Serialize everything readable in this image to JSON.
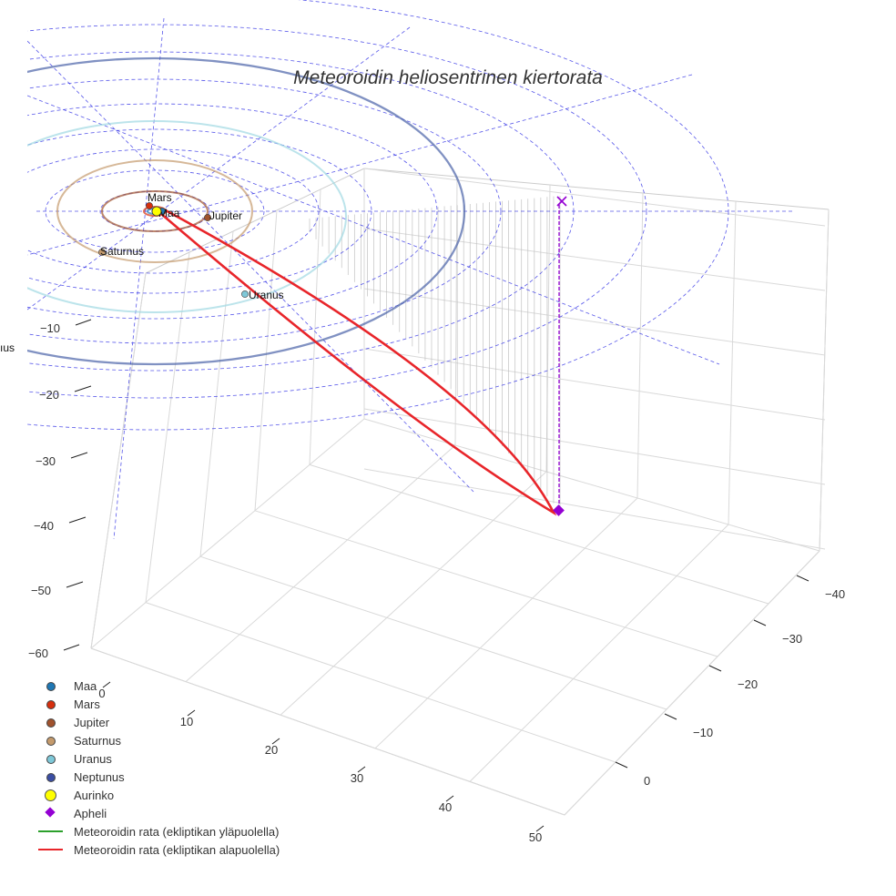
{
  "chart_data": {
    "type": "line",
    "title": "Meteoroidin heliosentrinen kiertorata",
    "xlabel": "",
    "ylabel": "",
    "zlabel": "",
    "x_ticks": [
      "0",
      "10",
      "20",
      "30",
      "40",
      "50"
    ],
    "y_ticks": [
      "−40",
      "−30",
      "−20",
      "−10",
      "0"
    ],
    "z_ticks": [
      "−10",
      "−20",
      "−30",
      "−40",
      "−50",
      "−60"
    ],
    "planets": [
      {
        "name": "Maa",
        "color": "#1f77b4",
        "orbit_color": "#1f77b4",
        "orbit_radius_au": 1.0
      },
      {
        "name": "Mars",
        "color": "#d62f0e",
        "orbit_color": "#d62f0e",
        "orbit_radius_au": 1.52
      },
      {
        "name": "Jupiter",
        "color": "#a0522d",
        "orbit_color": "#a0522d",
        "orbit_radius_au": 5.2
      },
      {
        "name": "Saturnus",
        "color": "#c49a6c",
        "orbit_color": "#c49a6c",
        "orbit_radius_au": 9.54
      },
      {
        "name": "Uranus",
        "color": "#7ec8d8",
        "orbit_color": "#9fd8e2",
        "orbit_radius_au": 19.2
      },
      {
        "name": "Neptunus",
        "color": "#3b4ea3",
        "orbit_color": "#4a62a8",
        "orbit_radius_au": 30.1
      }
    ],
    "series": [
      {
        "name": "Meteoroidin rata (ekliptikan yläpuolella)",
        "color": "#2ca02c"
      },
      {
        "name": "Meteoroidin rata (ekliptikan alapuolella)",
        "color": "#e8252a"
      }
    ],
    "markers": [
      {
        "name": "Aurinko",
        "color": "#ffff00"
      },
      {
        "name": "Apheli",
        "color": "#9400d3"
      }
    ],
    "legend_position": "bottom-left",
    "grid": true
  },
  "labels": {
    "maa": "Maa",
    "mars": "Mars",
    "jupiter": "Jupiter",
    "saturnus": "Saturnus",
    "uranus": "Uranus",
    "neptunus_partial": "ıus"
  },
  "legend": [
    {
      "label": "Maa",
      "kind": "dot",
      "color": "#1f77b4"
    },
    {
      "label": "Mars",
      "kind": "dot",
      "color": "#d62f0e"
    },
    {
      "label": "Jupiter",
      "kind": "dot",
      "color": "#a0522d"
    },
    {
      "label": "Saturnus",
      "kind": "dot",
      "color": "#c49a6c"
    },
    {
      "label": "Uranus",
      "kind": "dot",
      "color": "#7ec8d8"
    },
    {
      "label": "Neptunus",
      "kind": "dot",
      "color": "#3b4ea3"
    },
    {
      "label": "Aurinko",
      "kind": "sun",
      "color": "#ffff00"
    },
    {
      "label": "Apheli",
      "kind": "diamond",
      "color": "#9400d3"
    },
    {
      "label": "Meteoroidin rata (ekliptikan yläpuolella)",
      "kind": "line",
      "color": "#2ca02c"
    },
    {
      "label": "Meteoroidin rata (ekliptikan alapuolella)",
      "kind": "line",
      "color": "#e8252a"
    }
  ]
}
